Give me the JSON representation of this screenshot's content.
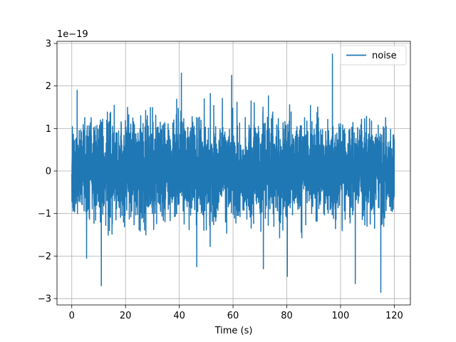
{
  "chart_data": {
    "type": "line",
    "title": "",
    "xlabel": "Time (s)",
    "ylabel": "",
    "offset_label": "1e−19",
    "y_scale_factor": 1e-19,
    "xlim": [
      -5.5,
      126
    ],
    "ylim": [
      -3.15,
      3.05
    ],
    "xticks": [
      0,
      20,
      40,
      60,
      80,
      100,
      120
    ],
    "yticks": [
      -3,
      -2,
      -1,
      0,
      1,
      2,
      3
    ],
    "xtick_labels": [
      "0",
      "20",
      "40",
      "60",
      "80",
      "100",
      "120"
    ],
    "ytick_labels": [
      "−3",
      "−2",
      "−1",
      "0",
      "1",
      "2",
      "3"
    ],
    "grid": true,
    "legend": {
      "position": "top-right",
      "entries": [
        "noise"
      ]
    },
    "series": [
      {
        "name": "noise",
        "color": "#1f77b4",
        "x_range": [
          0,
          120
        ],
        "y_std_scaled": 0.6,
        "sample_count": 4096,
        "notable_extrema": [
          {
            "x": 2.0,
            "y": 1.9
          },
          {
            "x": 5.5,
            "y": -2.05
          },
          {
            "x": 11.0,
            "y": -2.7
          },
          {
            "x": 40.8,
            "y": 2.3
          },
          {
            "x": 46.5,
            "y": -2.25
          },
          {
            "x": 59.5,
            "y": 2.25
          },
          {
            "x": 71.3,
            "y": -2.3
          },
          {
            "x": 80.2,
            "y": -2.48
          },
          {
            "x": 97.0,
            "y": 2.75
          },
          {
            "x": 105.5,
            "y": -2.65
          },
          {
            "x": 115.0,
            "y": -2.85
          }
        ]
      }
    ]
  }
}
